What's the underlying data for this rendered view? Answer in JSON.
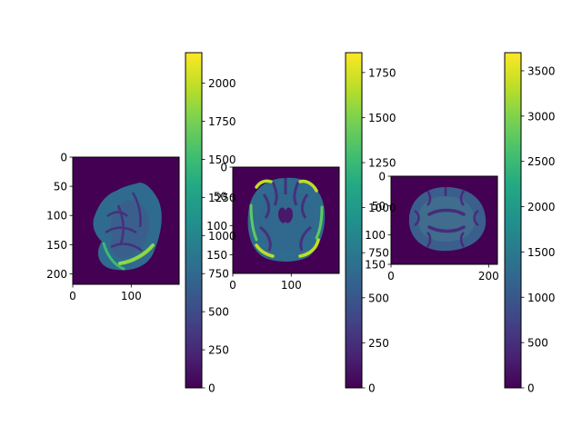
{
  "colormap_name": "viridis",
  "chart_data": [
    {
      "type": "heatmap",
      "title": "",
      "xlabel": "",
      "ylabel": "",
      "image_shape": [
        218,
        182
      ],
      "xlim": [
        0,
        182
      ],
      "ylim": [
        218,
        0
      ],
      "x_ticks": [
        0,
        100
      ],
      "y_ticks": [
        0,
        50,
        100,
        150,
        200
      ],
      "colorbar": {
        "min": 0,
        "max": 2200,
        "ticks": [
          0,
          250,
          500,
          750,
          1000,
          1250,
          1500,
          1750,
          2000
        ]
      },
      "view": "sagittal",
      "legend": "none",
      "grid": false
    },
    {
      "type": "heatmap",
      "title": "",
      "xlabel": "",
      "ylabel": "",
      "image_shape": [
        182,
        182
      ],
      "xlim": [
        0,
        182
      ],
      "ylim": [
        182,
        0
      ],
      "x_ticks": [
        0,
        100
      ],
      "y_ticks": [
        0,
        50,
        100,
        150
      ],
      "colorbar": {
        "min": 0,
        "max": 1860,
        "ticks": [
          0,
          250,
          500,
          750,
          1000,
          1250,
          1500,
          1750
        ]
      },
      "view": "coronal",
      "legend": "none",
      "grid": false
    },
    {
      "type": "heatmap",
      "title": "",
      "xlabel": "",
      "ylabel": "",
      "image_shape": [
        150,
        218
      ],
      "xlim": [
        0,
        218
      ],
      "ylim": [
        150,
        0
      ],
      "x_ticks": [
        0,
        200
      ],
      "y_ticks": [
        0,
        50,
        100,
        150
      ],
      "colorbar": {
        "min": 0,
        "max": 3700,
        "ticks": [
          0,
          500,
          1000,
          1500,
          2000,
          2500,
          3000,
          3500
        ]
      },
      "view": "axial",
      "legend": "none",
      "grid": false
    }
  ]
}
